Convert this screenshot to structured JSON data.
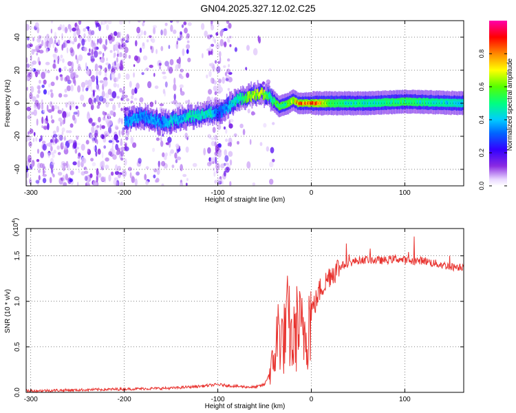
{
  "figure": {
    "title": "GN04.2025.327.12.02.C25"
  },
  "chart_data": [
    {
      "type": "heatmap",
      "xlabel": "Height of straight line (km)",
      "ylabel": "Frequency (Hz)",
      "xlim": [
        -305,
        163
      ],
      "ylim": [
        -50,
        50
      ],
      "xticks": [
        -300,
        -200,
        -100,
        0,
        100
      ],
      "yticks": [
        -40,
        -20,
        0,
        20,
        40
      ],
      "grid": true,
      "colorbar": {
        "label": "Normalized spectral amplitude",
        "range": [
          0,
          1
        ],
        "ticks": [
          "0.0",
          "0.2",
          "0.4",
          "0.6",
          "0.8"
        ],
        "tick_values": [
          0,
          0.2,
          0.4,
          0.6,
          0.8
        ],
        "colormap": "rainbow (white→purple→blue→cyan→green→yellow→orange→red→magenta)"
      },
      "ridge": {
        "description": "frequency of dominant spectral peak vs height",
        "x": [
          -200,
          -190,
          -180,
          -170,
          -160,
          -150,
          -140,
          -130,
          -120,
          -110,
          -100,
          -85,
          -75,
          -65,
          -55,
          -45,
          -40,
          -35,
          -30,
          -25,
          -20,
          -15,
          -10,
          0,
          20,
          60,
          100,
          163
        ],
        "y": [
          -11,
          -9,
          -8,
          -10,
          -12,
          -11,
          -9,
          -8,
          -7,
          -6,
          -6,
          0,
          3,
          5,
          6,
          4,
          1,
          -2,
          -1,
          0,
          2,
          0,
          0,
          0,
          0,
          0,
          1,
          0
        ],
        "amplitude": [
          0.35,
          0.4,
          0.35,
          0.4,
          0.35,
          0.45,
          0.4,
          0.5,
          0.45,
          0.5,
          0.3,
          0.45,
          0.5,
          0.7,
          0.8,
          0.5,
          0.55,
          0.6,
          0.55,
          0.6,
          0.75,
          0.85,
          0.9,
          0.95,
          0.55,
          0.5,
          0.55,
          0.45
        ]
      },
      "noise_regions": [
        {
          "x": [
            -305,
            -200
          ],
          "density": 1.0
        },
        {
          "x": [
            -200,
            -160
          ],
          "density": 0.45
        },
        {
          "x": [
            -160,
            -130
          ],
          "density": 0.55
        },
        {
          "x": [
            -130,
            -110
          ],
          "density": 0.05
        },
        {
          "x": [
            -110,
            -85
          ],
          "density": 0.9
        },
        {
          "x": [
            -85,
            -40
          ],
          "density": 0.12
        }
      ]
    },
    {
      "type": "line",
      "xlabel": "Height of straight line (km)",
      "ylabel": "SNR (10 * v/v)",
      "y_multiplier_base": "(x10",
      "y_multiplier_exp": "4",
      "y_multiplier_close": ")",
      "xlim": [
        -305,
        163
      ],
      "ylim": [
        0,
        1.8
      ],
      "xticks": [
        -300,
        -200,
        -100,
        0,
        100
      ],
      "yticks": [
        0,
        0.5,
        1.0,
        1.5
      ],
      "ytick_labels": [
        "0.0",
        "0.5",
        "1.0",
        "1.5"
      ],
      "grid": true,
      "series": [
        {
          "color": "#e8322e",
          "x": [
            -305,
            -250,
            -200,
            -150,
            -120,
            -100,
            -80,
            -60,
            -50,
            -45,
            -40,
            -35,
            -30,
            -25,
            -20,
            -15,
            -10,
            -5,
            0,
            5,
            10,
            15,
            20,
            25,
            30,
            40,
            50,
            60,
            70,
            80,
            90,
            100,
            110,
            120,
            130,
            140,
            150,
            163
          ],
          "y": [
            0.01,
            0.02,
            0.03,
            0.04,
            0.06,
            0.08,
            0.06,
            0.05,
            0.08,
            0.2,
            0.35,
            0.7,
            0.55,
            0.8,
            0.5,
            0.75,
            0.65,
            0.7,
            0.9,
            1.0,
            1.15,
            1.2,
            1.3,
            1.33,
            1.38,
            1.42,
            1.45,
            1.46,
            1.45,
            1.45,
            1.47,
            1.45,
            1.44,
            1.45,
            1.42,
            1.4,
            1.38,
            1.38
          ]
        }
      ]
    }
  ]
}
